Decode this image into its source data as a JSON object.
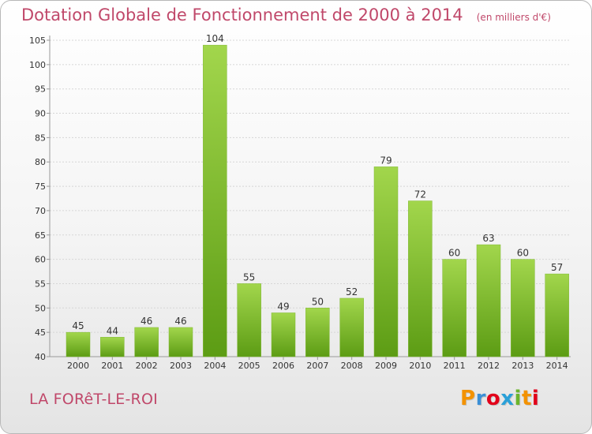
{
  "header": {
    "title": "Dotation Globale de Fonctionnement de 2000 à 2014",
    "subtitle": "(en milliers d'€)"
  },
  "footer": {
    "place": "LA FORêT-LE-ROI",
    "logo_text": "Proxiti"
  },
  "colors": {
    "title": "#c0486a",
    "bar_top": "#9fd24a",
    "bar_bottom": "#5a9a12",
    "logo_letters": [
      "#f39200",
      "#3b8fd6",
      "#e2001a",
      "#2aa0d8",
      "#6cb52d",
      "#f39200",
      "#e2001a"
    ]
  },
  "chart_data": {
    "type": "bar",
    "title": "Dotation Globale de Fonctionnement de 2000 à 2014",
    "subtitle": "(en milliers d'€)",
    "categories": [
      "2000",
      "2001",
      "2002",
      "2003",
      "2004",
      "2005",
      "2006",
      "2007",
      "2008",
      "2009",
      "2010",
      "2011",
      "2012",
      "2013",
      "2014"
    ],
    "values": [
      45,
      44,
      46,
      46,
      104,
      55,
      49,
      50,
      52,
      79,
      72,
      60,
      63,
      60,
      57
    ],
    "ylim": [
      40,
      105
    ],
    "yticks": [
      40,
      45,
      50,
      55,
      60,
      65,
      70,
      75,
      80,
      85,
      90,
      95,
      100,
      105
    ],
    "xlabel": "",
    "ylabel": "",
    "grid": true
  }
}
